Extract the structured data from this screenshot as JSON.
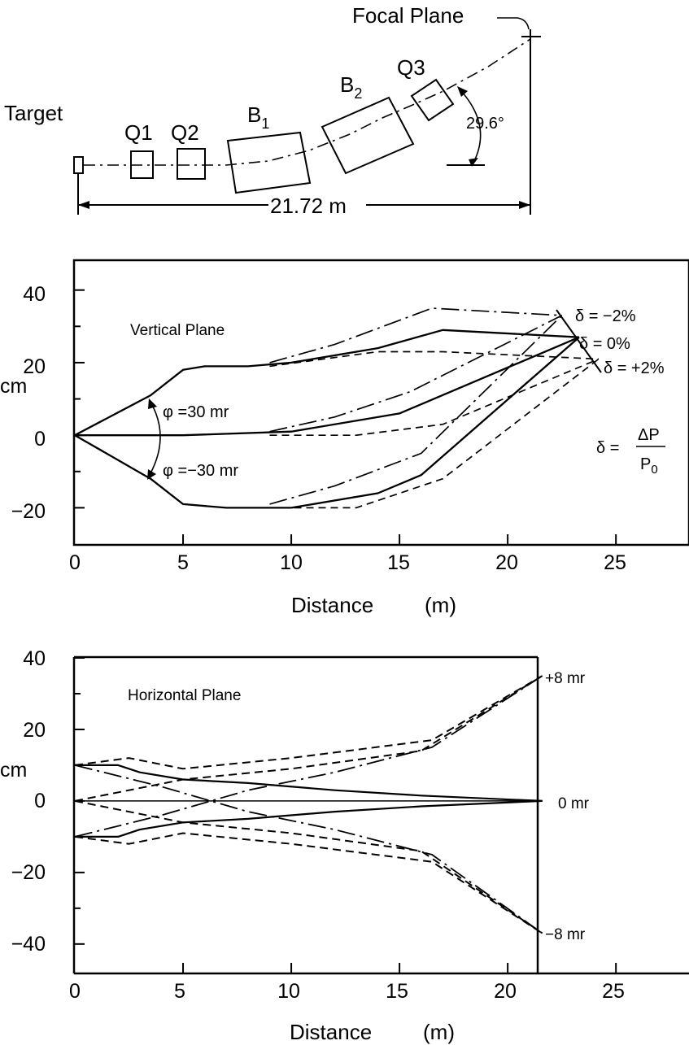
{
  "layout_diagram": {
    "target_label": "Target",
    "focal_plane_label": "Focal Plane",
    "magnets": [
      "Q1",
      "Q2",
      "B",
      "B",
      "Q3"
    ],
    "bend_subscripts": [
      "1",
      "2"
    ],
    "angle_label": "29.6°",
    "length_label": "21.72 m"
  },
  "vertical": {
    "title": "Vertical Plane",
    "ylabel": "cm",
    "xlabel_left": "Distance",
    "xlabel_right": "(m)",
    "yticks": [
      "40",
      "20",
      "0",
      "−20"
    ],
    "xticks": [
      "0",
      "5",
      "10",
      "15",
      "20",
      "25"
    ],
    "phi_plus": "φ =30 mr",
    "phi_minus": "φ =−30 mr",
    "delta_m2": "δ = −2%",
    "delta_0": "δ = 0%",
    "delta_p2": "δ = +2%",
    "delta_def_lhs": "δ =",
    "delta_def_num": "ΔP",
    "delta_def_den": "P",
    "delta_def_den_sub": "0"
  },
  "horizontal": {
    "title": "Horizontal Plane",
    "ylabel": "cm",
    "xlabel_left": "Distance",
    "xlabel_right": "(m)",
    "yticks": [
      "40",
      "20",
      "0",
      "−20",
      "−40"
    ],
    "xticks": [
      "0",
      "5",
      "10",
      "15",
      "20",
      "25"
    ],
    "label_plus": "+8 mr",
    "label_zero": "0 mr",
    "label_minus": "−8 mr"
  },
  "chart_data": [
    {
      "type": "line",
      "xlim": [
        0,
        28
      ],
      "ylim": [
        -30,
        48
      ],
      "series": [
        {
          "x": [
            0,
            3.5,
            5,
            6,
            8,
            10,
            14,
            17,
            23.3
          ],
          "y": [
            0,
            11,
            18,
            19,
            19,
            20,
            24,
            29,
            27
          ]
        },
        {
          "x": [
            0,
            5,
            10,
            15,
            23.3
          ],
          "y": [
            0,
            0,
            1,
            6,
            27
          ]
        },
        {
          "x": [
            0,
            3.5,
            5,
            7,
            10,
            14,
            16,
            23.3
          ],
          "y": [
            0,
            -12,
            -19,
            -20,
            -20,
            -16,
            -11,
            27
          ]
        },
        {
          "x": [
            9,
            12,
            16.5,
            22.5
          ],
          "y": [
            20,
            25,
            35,
            33
          ]
        },
        {
          "x": [
            9,
            12,
            15.5,
            22.5
          ],
          "y": [
            1,
            5,
            12,
            33
          ]
        },
        {
          "x": [
            9,
            12,
            16,
            22.5
          ],
          "y": [
            -19,
            -14,
            -5,
            33
          ]
        },
        {
          "x": [
            9,
            14,
            17,
            24.2
          ],
          "y": [
            19,
            23,
            23,
            21
          ]
        },
        {
          "x": [
            9,
            13,
            17,
            24.2
          ],
          "y": [
            0,
            0,
            3,
            21
          ]
        },
        {
          "x": [
            9,
            13,
            17,
            24.2
          ],
          "y": [
            -20,
            -20,
            -12,
            21
          ]
        }
      ]
    },
    {
      "type": "line",
      "xlim": [
        0,
        28
      ],
      "ylim": [
        -48,
        40
      ],
      "series": [
        {
          "x": [
            0,
            2,
            3,
            5,
            8,
            12,
            16,
            21.6
          ],
          "y": [
            10,
            10,
            8,
            6,
            5,
            3,
            1.5,
            0
          ]
        },
        {
          "x": [
            0,
            2,
            3,
            5,
            8,
            12,
            16,
            21.6
          ],
          "y": [
            -10,
            -10,
            -8,
            -6,
            -5,
            -3,
            -1.5,
            0
          ]
        },
        {
          "x": [
            0,
            21.6
          ],
          "y": [
            0,
            0
          ]
        },
        {
          "x": [
            0,
            2.5,
            5,
            10,
            16.5,
            21.6
          ],
          "y": [
            10,
            12,
            9,
            12,
            17,
            35
          ]
        },
        {
          "x": [
            0,
            5,
            10,
            16,
            21.6
          ],
          "y": [
            0,
            6,
            9,
            14,
            35
          ]
        },
        {
          "x": [
            0,
            2.5,
            5,
            10,
            16.5,
            21.6
          ],
          "y": [
            -10,
            -12,
            -9,
            -12,
            -17,
            -37
          ]
        },
        {
          "x": [
            0,
            5,
            10,
            16,
            21.6
          ],
          "y": [
            0,
            -6,
            -9,
            -14,
            -37
          ]
        },
        {
          "x": [
            0,
            4,
            8,
            12,
            16.5,
            21.6
          ],
          "y": [
            10,
            4,
            -3,
            -8,
            -15,
            -37
          ]
        },
        {
          "x": [
            0,
            4,
            8,
            12,
            16.5,
            21.6
          ],
          "y": [
            -10,
            -4,
            3,
            8,
            15,
            35
          ]
        }
      ]
    }
  ]
}
